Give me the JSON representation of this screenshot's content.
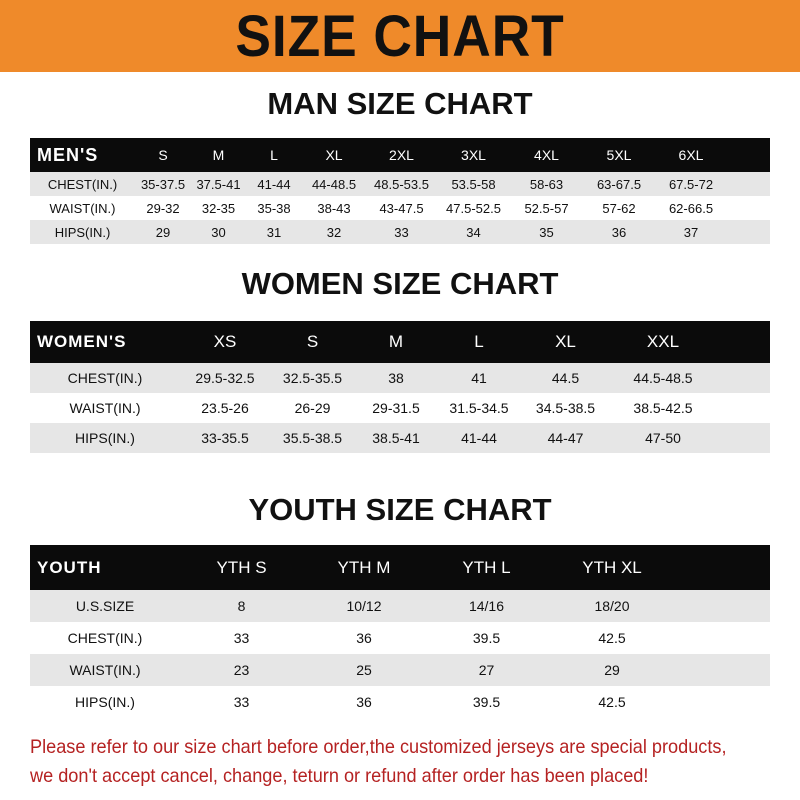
{
  "banner_title": "SIZE CHART",
  "men": {
    "title": "MAN SIZE CHART",
    "header_label": "MEN'S",
    "sizes": [
      "S",
      "M",
      "L",
      "XL",
      "2XL",
      "3XL",
      "4XL",
      "5XL",
      "6XL"
    ],
    "rows": [
      {
        "label": "CHEST(IN.)",
        "values": [
          "35-37.5",
          "37.5-41",
          "41-44",
          "44-48.5",
          "48.5-53.5",
          "53.5-58",
          "58-63",
          "63-67.5",
          "67.5-72"
        ]
      },
      {
        "label": "WAIST(IN.)",
        "values": [
          "29-32",
          "32-35",
          "35-38",
          "38-43",
          "43-47.5",
          "47.5-52.5",
          "52.5-57",
          "57-62",
          "62-66.5"
        ]
      },
      {
        "label": "HIPS(IN.)",
        "values": [
          "29",
          "30",
          "31",
          "32",
          "33",
          "34",
          "35",
          "36",
          "37"
        ]
      }
    ]
  },
  "women": {
    "title": "WOMEN SIZE CHART",
    "header_label": "WOMEN'S",
    "sizes": [
      "XS",
      "S",
      "M",
      "L",
      "XL",
      "XXL"
    ],
    "rows": [
      {
        "label": "CHEST(IN.)",
        "values": [
          "29.5-32.5",
          "32.5-35.5",
          "38",
          "41",
          "44.5",
          "44.5-48.5"
        ]
      },
      {
        "label": "WAIST(IN.)",
        "values": [
          "23.5-26",
          "26-29",
          "29-31.5",
          "31.5-34.5",
          "34.5-38.5",
          "38.5-42.5"
        ]
      },
      {
        "label": "HIPS(IN.)",
        "values": [
          "33-35.5",
          "35.5-38.5",
          "38.5-41",
          "41-44",
          "44-47",
          "47-50"
        ]
      }
    ]
  },
  "youth": {
    "title": "YOUTH SIZE CHART",
    "header_label": "YOUTH",
    "sizes": [
      "YTH S",
      "YTH M",
      "YTH L",
      "YTH XL"
    ],
    "rows": [
      {
        "label": "U.S.SIZE",
        "values": [
          "8",
          "10/12",
          "14/16",
          "18/20"
        ]
      },
      {
        "label": "CHEST(IN.)",
        "values": [
          "33",
          "36",
          "39.5",
          "42.5"
        ]
      },
      {
        "label": "WAIST(IN.)",
        "values": [
          "23",
          "25",
          "27",
          "29"
        ]
      },
      {
        "label": "HIPS(IN.)",
        "values": [
          "33",
          "36",
          "39.5",
          "42.5"
        ]
      }
    ]
  },
  "note": {
    "line1": "Please refer to our size chart before order,the customized jerseys are special products,",
    "line2": "we don't accept cancel, change, teturn or refund after order has been placed!"
  },
  "colors": {
    "banner": "#ef8a2a",
    "header_row": "#0b0b0b",
    "stripe": "#e6e6e6",
    "note": "#b52222"
  }
}
